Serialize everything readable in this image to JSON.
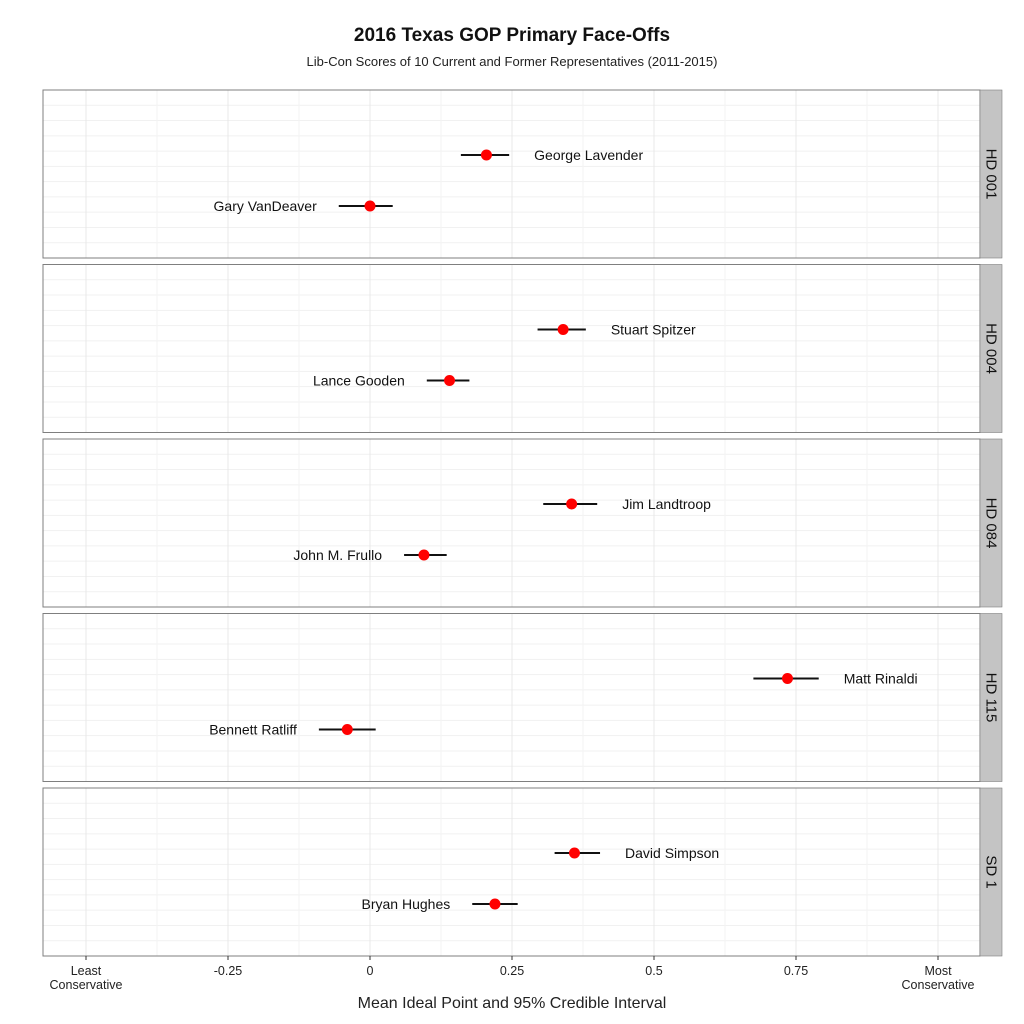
{
  "chart_data": {
    "type": "scatter",
    "title": "2016 Texas GOP Primary Face-Offs",
    "subtitle": "Lib-Con Scores of 10 Current and Former Representatives (2011-2015)",
    "xlabel": "Mean Ideal Point and 95% Credible Interval",
    "ylabel": "",
    "xlim": [
      -0.37,
      0.99
    ],
    "x_ticks": [
      {
        "value": -0.25,
        "label": "-0.25"
      },
      {
        "value": 0.0,
        "label": "0"
      },
      {
        "value": 0.25,
        "label": "0.25"
      },
      {
        "value": 0.5,
        "label": "0.5"
      },
      {
        "value": 0.75,
        "label": "0.75"
      }
    ],
    "x_end_labels": {
      "left": {
        "value": -0.5,
        "lines": [
          "Least",
          "Conservative"
        ]
      },
      "right": {
        "value": 1.0,
        "lines": [
          "Most",
          "Conservative"
        ]
      }
    },
    "grid": true,
    "point_color": "#ff0000",
    "interval_color": "#111111",
    "strip_color": "#c4c4c4",
    "facets": [
      {
        "label": "HD 001",
        "candidates": [
          {
            "name": "George Lavender",
            "mean": 0.205,
            "low": 0.16,
            "high": 0.245,
            "label_side": "right"
          },
          {
            "name": "Gary VanDeaver",
            "mean": 0.0,
            "low": -0.055,
            "high": 0.04,
            "label_side": "left"
          }
        ]
      },
      {
        "label": "HD 004",
        "candidates": [
          {
            "name": "Stuart Spitzer",
            "mean": 0.34,
            "low": 0.295,
            "high": 0.38,
            "label_side": "right"
          },
          {
            "name": "Lance Gooden",
            "mean": 0.14,
            "low": 0.1,
            "high": 0.175,
            "label_side": "left"
          }
        ]
      },
      {
        "label": "HD 084",
        "candidates": [
          {
            "name": "Jim Landtroop",
            "mean": 0.355,
            "low": 0.305,
            "high": 0.4,
            "label_side": "right"
          },
          {
            "name": "John M. Frullo",
            "mean": 0.095,
            "low": 0.06,
            "high": 0.135,
            "label_side": "left"
          }
        ]
      },
      {
        "label": "HD 115",
        "candidates": [
          {
            "name": "Matt Rinaldi",
            "mean": 0.735,
            "low": 0.675,
            "high": 0.79,
            "label_side": "right"
          },
          {
            "name": "Bennett Ratliff",
            "mean": -0.04,
            "low": -0.09,
            "high": 0.01,
            "label_side": "left"
          }
        ]
      },
      {
        "label": "SD 1",
        "candidates": [
          {
            "name": "David Simpson",
            "mean": 0.36,
            "low": 0.325,
            "high": 0.405,
            "label_side": "right"
          },
          {
            "name": "Bryan Hughes",
            "mean": 0.22,
            "low": 0.18,
            "high": 0.26,
            "label_side": "left"
          }
        ]
      }
    ]
  }
}
